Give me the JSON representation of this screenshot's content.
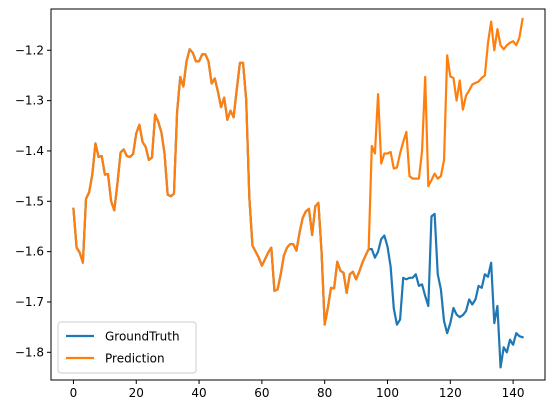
{
  "chart_data": {
    "type": "line",
    "title": "",
    "xlabel": "",
    "ylabel": "",
    "xlim": [
      -7.15,
      150.15
    ],
    "ylim": [
      -1.855,
      -1.118
    ],
    "xticks": [
      0,
      20,
      40,
      60,
      80,
      100,
      120,
      140
    ],
    "yticks": [
      -1.8,
      -1.7,
      -1.6,
      -1.5,
      -1.4,
      -1.3,
      -1.2
    ],
    "grid": false,
    "legend": {
      "position": "lower-left"
    },
    "series": [
      {
        "name": "GroundTruth",
        "color": "#1f77b4",
        "points": [
          [
            0,
            -1.515
          ],
          [
            1,
            -1.592
          ],
          [
            2,
            -1.602
          ],
          [
            3,
            -1.622
          ],
          [
            4,
            -1.495
          ],
          [
            5,
            -1.482
          ],
          [
            6,
            -1.447
          ],
          [
            7,
            -1.385
          ],
          [
            8,
            -1.412
          ],
          [
            9,
            -1.41
          ],
          [
            10,
            -1.447
          ],
          [
            11,
            -1.446
          ],
          [
            12,
            -1.5
          ],
          [
            13,
            -1.518
          ],
          [
            14,
            -1.465
          ],
          [
            15,
            -1.403
          ],
          [
            16,
            -1.397
          ],
          [
            17,
            -1.41
          ],
          [
            18,
            -1.412
          ],
          [
            19,
            -1.406
          ],
          [
            20,
            -1.365
          ],
          [
            21,
            -1.348
          ],
          [
            22,
            -1.382
          ],
          [
            23,
            -1.392
          ],
          [
            24,
            -1.418
          ],
          [
            25,
            -1.413
          ],
          [
            26,
            -1.328
          ],
          [
            27,
            -1.342
          ],
          [
            28,
            -1.363
          ],
          [
            29,
            -1.405
          ],
          [
            30,
            -1.487
          ],
          [
            31,
            -1.49
          ],
          [
            32,
            -1.485
          ],
          [
            33,
            -1.323
          ],
          [
            34,
            -1.253
          ],
          [
            35,
            -1.272
          ],
          [
            36,
            -1.222
          ],
          [
            37,
            -1.198
          ],
          [
            38,
            -1.205
          ],
          [
            39,
            -1.222
          ],
          [
            40,
            -1.222
          ],
          [
            41,
            -1.208
          ],
          [
            42,
            -1.208
          ],
          [
            43,
            -1.222
          ],
          [
            44,
            -1.266
          ],
          [
            45,
            -1.256
          ],
          [
            46,
            -1.282
          ],
          [
            47,
            -1.313
          ],
          [
            48,
            -1.294
          ],
          [
            49,
            -1.338
          ],
          [
            50,
            -1.32
          ],
          [
            51,
            -1.333
          ],
          [
            52,
            -1.278
          ],
          [
            53,
            -1.225
          ],
          [
            54,
            -1.225
          ],
          [
            55,
            -1.298
          ],
          [
            56,
            -1.492
          ],
          [
            57,
            -1.588
          ],
          [
            58,
            -1.6
          ],
          [
            59,
            -1.612
          ],
          [
            60,
            -1.628
          ],
          [
            61,
            -1.615
          ],
          [
            62,
            -1.602
          ],
          [
            63,
            -1.592
          ],
          [
            64,
            -1.678
          ],
          [
            65,
            -1.675
          ],
          [
            66,
            -1.645
          ],
          [
            67,
            -1.608
          ],
          [
            68,
            -1.592
          ],
          [
            69,
            -1.585
          ],
          [
            70,
            -1.585
          ],
          [
            71,
            -1.598
          ],
          [
            72,
            -1.562
          ],
          [
            73,
            -1.533
          ],
          [
            74,
            -1.52
          ],
          [
            75,
            -1.515
          ],
          [
            76,
            -1.567
          ],
          [
            77,
            -1.51
          ],
          [
            78,
            -1.503
          ],
          [
            79,
            -1.6
          ],
          [
            80,
            -1.745
          ],
          [
            81,
            -1.712
          ],
          [
            82,
            -1.672
          ],
          [
            83,
            -1.673
          ],
          [
            84,
            -1.62
          ],
          [
            85,
            -1.638
          ],
          [
            86,
            -1.642
          ],
          [
            87,
            -1.682
          ],
          [
            88,
            -1.645
          ],
          [
            89,
            -1.64
          ],
          [
            90,
            -1.655
          ],
          [
            91,
            -1.64
          ],
          [
            92,
            -1.622
          ],
          [
            93,
            -1.608
          ],
          [
            94,
            -1.595
          ],
          [
            95,
            -1.595
          ],
          [
            96,
            -1.612
          ],
          [
            97,
            -1.6
          ],
          [
            98,
            -1.575
          ],
          [
            99,
            -1.568
          ],
          [
            100,
            -1.59
          ],
          [
            101,
            -1.63
          ],
          [
            102,
            -1.713
          ],
          [
            103,
            -1.745
          ],
          [
            104,
            -1.735
          ],
          [
            105,
            -1.652
          ],
          [
            106,
            -1.655
          ],
          [
            107,
            -1.652
          ],
          [
            108,
            -1.652
          ],
          [
            109,
            -1.645
          ],
          [
            110,
            -1.668
          ],
          [
            111,
            -1.665
          ],
          [
            112,
            -1.688
          ],
          [
            113,
            -1.708
          ],
          [
            114,
            -1.53
          ],
          [
            115,
            -1.525
          ],
          [
            116,
            -1.645
          ],
          [
            117,
            -1.675
          ],
          [
            118,
            -1.738
          ],
          [
            119,
            -1.762
          ],
          [
            120,
            -1.742
          ],
          [
            121,
            -1.712
          ],
          [
            122,
            -1.725
          ],
          [
            123,
            -1.73
          ],
          [
            124,
            -1.726
          ],
          [
            125,
            -1.718
          ],
          [
            126,
            -1.695
          ],
          [
            127,
            -1.705
          ],
          [
            128,
            -1.695
          ],
          [
            129,
            -1.668
          ],
          [
            130,
            -1.672
          ],
          [
            131,
            -1.645
          ],
          [
            132,
            -1.65
          ],
          [
            133,
            -1.622
          ],
          [
            134,
            -1.742
          ],
          [
            135,
            -1.708
          ],
          [
            136,
            -1.83
          ],
          [
            137,
            -1.79
          ],
          [
            138,
            -1.8
          ],
          [
            139,
            -1.775
          ],
          [
            140,
            -1.785
          ],
          [
            141,
            -1.762
          ],
          [
            142,
            -1.768
          ],
          [
            143,
            -1.77
          ]
        ]
      },
      {
        "name": "Prediction",
        "color": "#ff7f0e",
        "points": [
          [
            0,
            -1.515
          ],
          [
            1,
            -1.592
          ],
          [
            2,
            -1.602
          ],
          [
            3,
            -1.622
          ],
          [
            4,
            -1.495
          ],
          [
            5,
            -1.482
          ],
          [
            6,
            -1.447
          ],
          [
            7,
            -1.385
          ],
          [
            8,
            -1.412
          ],
          [
            9,
            -1.41
          ],
          [
            10,
            -1.447
          ],
          [
            11,
            -1.446
          ],
          [
            12,
            -1.5
          ],
          [
            13,
            -1.518
          ],
          [
            14,
            -1.465
          ],
          [
            15,
            -1.403
          ],
          [
            16,
            -1.397
          ],
          [
            17,
            -1.41
          ],
          [
            18,
            -1.412
          ],
          [
            19,
            -1.406
          ],
          [
            20,
            -1.365
          ],
          [
            21,
            -1.348
          ],
          [
            22,
            -1.382
          ],
          [
            23,
            -1.392
          ],
          [
            24,
            -1.418
          ],
          [
            25,
            -1.413
          ],
          [
            26,
            -1.328
          ],
          [
            27,
            -1.342
          ],
          [
            28,
            -1.363
          ],
          [
            29,
            -1.405
          ],
          [
            30,
            -1.487
          ],
          [
            31,
            -1.49
          ],
          [
            32,
            -1.485
          ],
          [
            33,
            -1.323
          ],
          [
            34,
            -1.253
          ],
          [
            35,
            -1.272
          ],
          [
            36,
            -1.222
          ],
          [
            37,
            -1.198
          ],
          [
            38,
            -1.205
          ],
          [
            39,
            -1.222
          ],
          [
            40,
            -1.222
          ],
          [
            41,
            -1.208
          ],
          [
            42,
            -1.208
          ],
          [
            43,
            -1.222
          ],
          [
            44,
            -1.266
          ],
          [
            45,
            -1.256
          ],
          [
            46,
            -1.282
          ],
          [
            47,
            -1.313
          ],
          [
            48,
            -1.294
          ],
          [
            49,
            -1.338
          ],
          [
            50,
            -1.32
          ],
          [
            51,
            -1.333
          ],
          [
            52,
            -1.278
          ],
          [
            53,
            -1.225
          ],
          [
            54,
            -1.225
          ],
          [
            55,
            -1.298
          ],
          [
            56,
            -1.492
          ],
          [
            57,
            -1.588
          ],
          [
            58,
            -1.6
          ],
          [
            59,
            -1.612
          ],
          [
            60,
            -1.628
          ],
          [
            61,
            -1.615
          ],
          [
            62,
            -1.602
          ],
          [
            63,
            -1.592
          ],
          [
            64,
            -1.678
          ],
          [
            65,
            -1.675
          ],
          [
            66,
            -1.645
          ],
          [
            67,
            -1.608
          ],
          [
            68,
            -1.592
          ],
          [
            69,
            -1.585
          ],
          [
            70,
            -1.585
          ],
          [
            71,
            -1.598
          ],
          [
            72,
            -1.562
          ],
          [
            73,
            -1.533
          ],
          [
            74,
            -1.52
          ],
          [
            75,
            -1.515
          ],
          [
            76,
            -1.567
          ],
          [
            77,
            -1.51
          ],
          [
            78,
            -1.503
          ],
          [
            79,
            -1.6
          ],
          [
            80,
            -1.745
          ],
          [
            81,
            -1.712
          ],
          [
            82,
            -1.672
          ],
          [
            83,
            -1.673
          ],
          [
            84,
            -1.62
          ],
          [
            85,
            -1.638
          ],
          [
            86,
            -1.642
          ],
          [
            87,
            -1.682
          ],
          [
            88,
            -1.645
          ],
          [
            89,
            -1.64
          ],
          [
            90,
            -1.655
          ],
          [
            91,
            -1.64
          ],
          [
            92,
            -1.622
          ],
          [
            93,
            -1.608
          ],
          [
            94,
            -1.595
          ],
          [
            95,
            -1.39
          ],
          [
            96,
            -1.405
          ],
          [
            97,
            -1.287
          ],
          [
            98,
            -1.425
          ],
          [
            99,
            -1.405
          ],
          [
            100,
            -1.405
          ],
          [
            101,
            -1.402
          ],
          [
            102,
            -1.435
          ],
          [
            103,
            -1.433
          ],
          [
            104,
            -1.405
          ],
          [
            105,
            -1.382
          ],
          [
            106,
            -1.362
          ],
          [
            107,
            -1.45
          ],
          [
            108,
            -1.455
          ],
          [
            109,
            -1.455
          ],
          [
            110,
            -1.455
          ],
          [
            111,
            -1.4
          ],
          [
            112,
            -1.253
          ],
          [
            113,
            -1.47
          ],
          [
            114,
            -1.458
          ],
          [
            115,
            -1.445
          ],
          [
            116,
            -1.455
          ],
          [
            117,
            -1.45
          ],
          [
            118,
            -1.418
          ],
          [
            119,
            -1.21
          ],
          [
            120,
            -1.252
          ],
          [
            121,
            -1.255
          ],
          [
            122,
            -1.3
          ],
          [
            123,
            -1.26
          ],
          [
            124,
            -1.318
          ],
          [
            125,
            -1.29
          ],
          [
            126,
            -1.28
          ],
          [
            127,
            -1.268
          ],
          [
            128,
            -1.265
          ],
          [
            129,
            -1.262
          ],
          [
            130,
            -1.255
          ],
          [
            131,
            -1.25
          ],
          [
            132,
            -1.185
          ],
          [
            133,
            -1.143
          ],
          [
            134,
            -1.2
          ],
          [
            135,
            -1.158
          ],
          [
            136,
            -1.19
          ],
          [
            137,
            -1.198
          ],
          [
            138,
            -1.19
          ],
          [
            139,
            -1.185
          ],
          [
            140,
            -1.182
          ],
          [
            141,
            -1.19
          ],
          [
            142,
            -1.175
          ],
          [
            143,
            -1.138
          ]
        ]
      }
    ]
  }
}
